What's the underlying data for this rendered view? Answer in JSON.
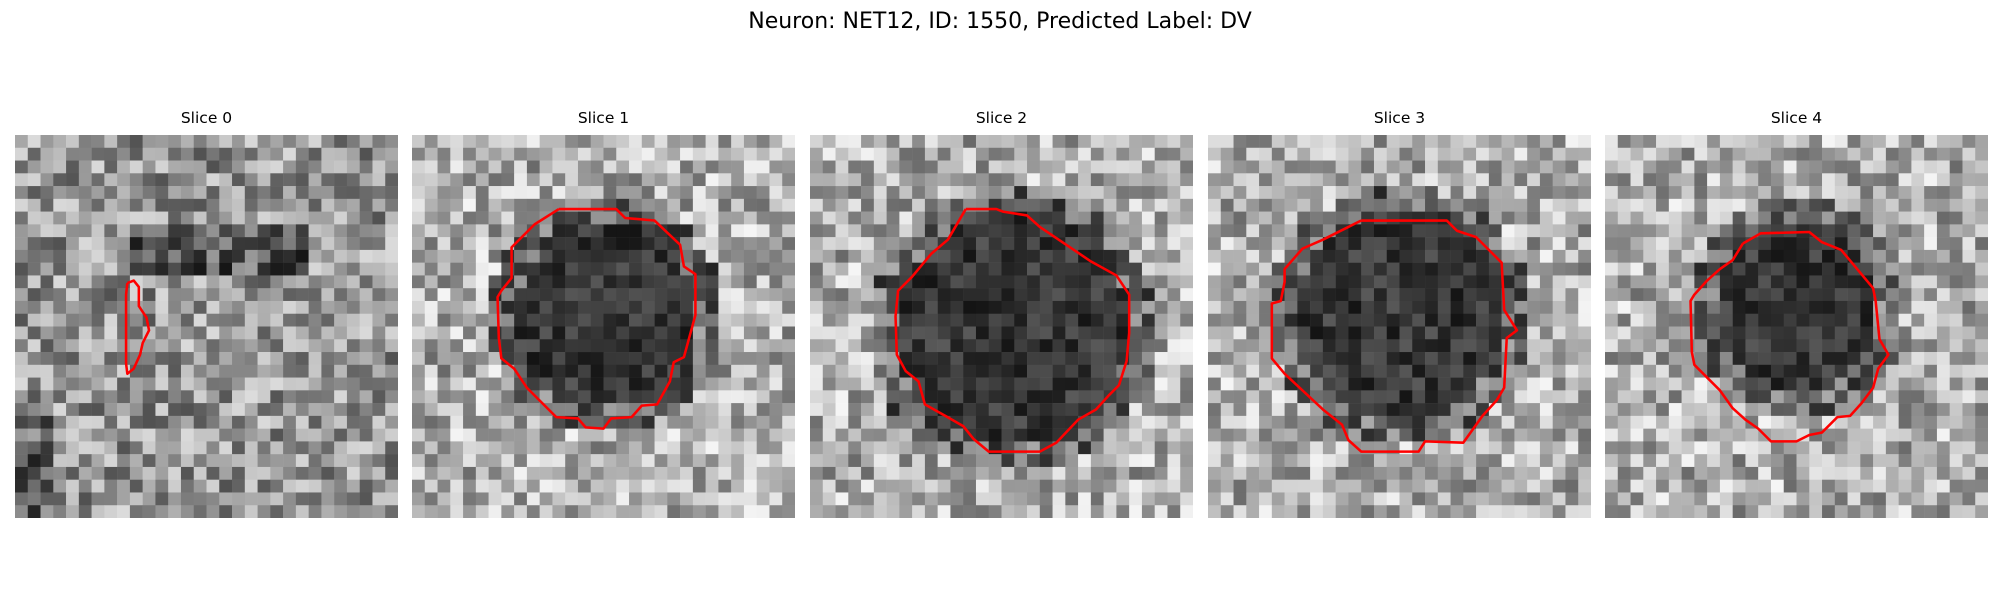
{
  "figure": {
    "title": "Neuron: NET12, ID: 1550, Predicted Label: DV",
    "panels": [
      {
        "title": "Slice 0",
        "contour_color": "#ff0000",
        "blob": "none"
      },
      {
        "title": "Slice 1",
        "contour_color": "#ff0000",
        "blob": "dark"
      },
      {
        "title": "Slice 2",
        "contour_color": "#ff0000",
        "blob": "dark"
      },
      {
        "title": "Slice 3",
        "contour_color": "#ff0000",
        "blob": "dark"
      },
      {
        "title": "Slice 4",
        "contour_color": "#ff0000",
        "blob": "dark"
      }
    ]
  }
}
